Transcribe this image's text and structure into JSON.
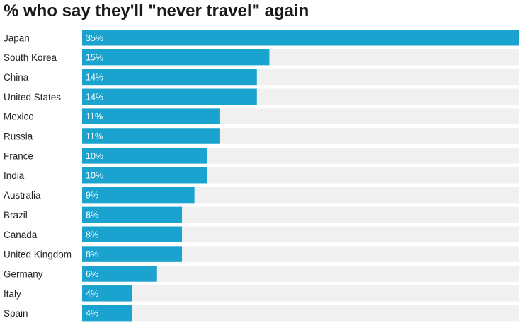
{
  "colors": {
    "bar": "#1ba3cf",
    "track": "#f0f0f0"
  },
  "chart_data": {
    "type": "bar",
    "orientation": "horizontal",
    "title": "% who say they'll \"never travel\" again",
    "categories": [
      "Japan",
      "South Korea",
      "China",
      "United States",
      "Mexico",
      "Russia",
      "France",
      "India",
      "Australia",
      "Brazil",
      "Canada",
      "United Kingdom",
      "Germany",
      "Italy",
      "Spain"
    ],
    "values": [
      35,
      15,
      14,
      14,
      11,
      11,
      10,
      10,
      9,
      8,
      8,
      8,
      6,
      4,
      4
    ],
    "value_labels": [
      "35%",
      "15%",
      "14%",
      "14%",
      "11%",
      "11%",
      "10%",
      "10%",
      "9%",
      "8%",
      "8%",
      "8%",
      "6%",
      "4%",
      "4%"
    ],
    "xlim": [
      0,
      35
    ],
    "grid": false,
    "legend": "none"
  }
}
